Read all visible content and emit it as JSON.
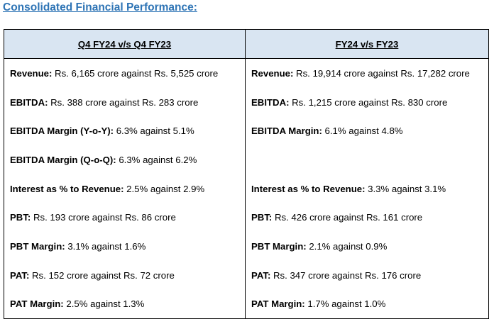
{
  "title": "Consolidated Financial Performance:",
  "table": {
    "headers": [
      "Q4 FY24 v/s Q4 FY23",
      "FY24 v/s FY23"
    ],
    "rows": [
      {
        "left": {
          "label": "Revenue:",
          "value": " Rs. 6,165 crore against Rs. 5,525 crore"
        },
        "right": {
          "label": "Revenue:",
          "value": " Rs. 19,914 crore against Rs. 17,282 crore"
        }
      },
      {
        "left": {
          "label": "EBITDA:",
          "value": " Rs. 388 crore against Rs. 283 crore"
        },
        "right": {
          "label": "EBITDA:",
          "value": " Rs. 1,215 crore against Rs. 830 crore"
        }
      },
      {
        "left": {
          "label": "EBITDA Margin (Y-o-Y):",
          "value": " 6.3% against 5.1%"
        },
        "right": {
          "label": "EBITDA Margin:",
          "value": " 6.1% against 4.8%"
        }
      },
      {
        "left": {
          "label": "EBITDA Margin (Q-o-Q):",
          "value": " 6.3% against 6.2%"
        },
        "right": {
          "label": "",
          "value": ""
        }
      },
      {
        "left": {
          "label": "Interest as % to Revenue:",
          "value": " 2.5% against 2.9%"
        },
        "right": {
          "label": "Interest as % to Revenue:",
          "value": " 3.3% against 3.1%"
        }
      },
      {
        "left": {
          "label": "PBT:",
          "value": " Rs. 193 crore against Rs. 86 crore"
        },
        "right": {
          "label": "PBT:",
          "value": " Rs. 426 crore against Rs. 161 crore"
        }
      },
      {
        "left": {
          "label": "PBT Margin:",
          "value": " 3.1% against 1.6%"
        },
        "right": {
          "label": "PBT Margin:",
          "value": " 2.1% against 0.9%"
        }
      },
      {
        "left": {
          "label": "PAT:",
          "value": " Rs. 152 crore against Rs. 72 crore"
        },
        "right": {
          "label": "PAT:",
          "value": " Rs. 347 crore against Rs. 176 crore"
        }
      },
      {
        "left": {
          "label": "PAT Margin:",
          "value": " 2.5% against 1.3%"
        },
        "right": {
          "label": "PAT Margin:",
          "value": " 1.7% against 1.0%"
        }
      }
    ]
  },
  "colors": {
    "title": "#2e74b5",
    "header_bg": "#d9e5f2"
  }
}
